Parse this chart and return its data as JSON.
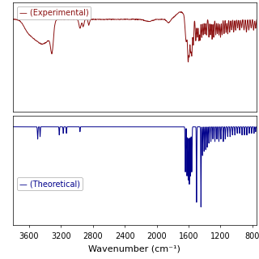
{
  "title": "",
  "xlabel": "Wavenumber (cm⁻¹)",
  "xmin": 750,
  "xmax": 3800,
  "exp_color": "#8B1010",
  "theo_color": "#00008B",
  "exp_label": "— (Experimental)",
  "theo_label": "— (Theoretical)",
  "background_color": "#ffffff",
  "tick_label_fontsize": 7,
  "axis_label_fontsize": 8,
  "legend_fontsize": 7,
  "xticks": [
    3600,
    3200,
    2800,
    2400,
    2000,
    1600,
    1200,
    800
  ]
}
